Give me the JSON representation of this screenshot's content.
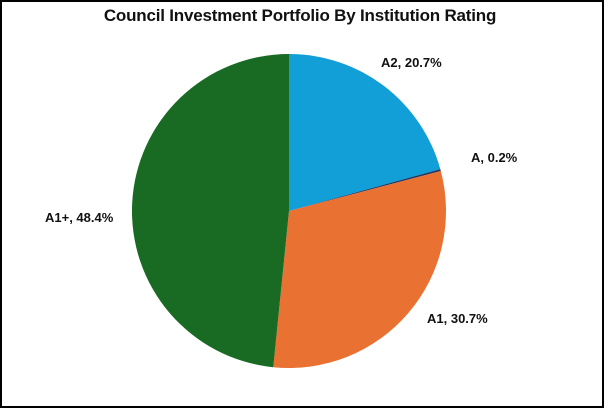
{
  "chart_data": {
    "type": "pie",
    "title": "Council Investment Portfolio By Institution Rating",
    "categories": [
      "A2",
      "A",
      "A1",
      "A1+"
    ],
    "values": [
      20.7,
      0.2,
      30.7,
      48.4
    ],
    "unit": "%",
    "colors": [
      "#129ED6",
      "#1F3864",
      "#E97132",
      "#196B24"
    ],
    "labels": [
      "A2, 20.7%",
      "A, 0.2%",
      "A1, 30.7%",
      "A1+, 48.4%"
    ],
    "start_angle": "12 o'clock",
    "direction": "clockwise",
    "legend": "none (data labels)"
  }
}
